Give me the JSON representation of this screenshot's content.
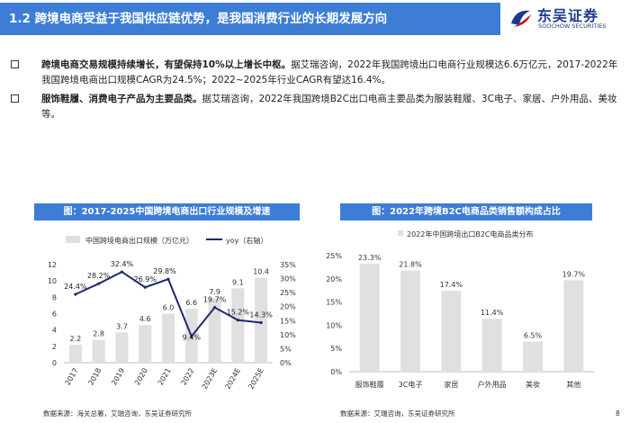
{
  "header": {
    "title": "1.2 跨境电商受益于我国供应链优势，是我国消费行业的长期发展方向",
    "logo_cn": "东吴证券",
    "logo_en": "SOOCHOW SECURITIES",
    "accent": "#3d7dd6"
  },
  "bullets": [
    {
      "bold": "跨境电商交易规模持续增长，有望保持10%以上增长中枢。",
      "text": "据艾瑞咨询，2022年我国跨境出口电商行业规模达6.6万亿元，2017-2022年我国跨境电商出口规模CAGR为24.5%；2022~2025年行业CAGR有望达16.4%。"
    },
    {
      "bold": "服饰鞋履、消费电子产品为主要品类。",
      "text": "据艾瑞咨询，2022年我国跨境B2C出口电商主要品类为服装鞋履、3C电子、家居、户外用品、美妆等。"
    }
  ],
  "figures": [
    {
      "caption": "图：2017-2025中国跨境电商出口行业规模及增速",
      "source": "数据来源：海关总署，艾瑞咨询，东吴证券研究所"
    },
    {
      "caption": "图：2022年跨境B2C电商品类销售额构成占比",
      "source": "数据来源：艾瑞咨询，东吴证券研究所"
    }
  ],
  "page_number": "8",
  "chart_data": [
    {
      "type": "bar",
      "categories": [
        "2017",
        "2018",
        "2019",
        "2020",
        "2021",
        "2022",
        "2023E",
        "2024E",
        "2025E"
      ],
      "series": [
        {
          "name": "中国跨境电商出口规模（万亿元）",
          "axis": "left",
          "kind": "bar",
          "values": [
            2.2,
            2.8,
            3.7,
            4.6,
            6.0,
            6.6,
            7.9,
            9.1,
            10.4
          ],
          "labels": [
            "2.2",
            "2.8",
            "3.7",
            "4.6",
            "6.0",
            "6.6",
            "7.9",
            "9.1",
            "10.4"
          ],
          "color": "#e0e0e0"
        },
        {
          "name": "yoy（右轴）",
          "axis": "right",
          "kind": "line",
          "values": [
            24.4,
            28.2,
            32.4,
            26.9,
            29.8,
            9.4,
            19.7,
            15.2,
            14.3
          ],
          "labels": [
            "24.4%",
            "28.2%",
            "32.4%",
            "26.9%",
            "29.8%",
            "9.4%",
            "19.7%",
            "15.2%",
            "14.3%"
          ],
          "color": "#1f2a6b"
        }
      ],
      "ylim": [
        0,
        12
      ],
      "yticks": [
        0,
        2,
        4,
        6,
        8,
        10,
        12
      ],
      "y2lim": [
        0,
        35
      ],
      "y2ticks": [
        "0%",
        "5%",
        "10%",
        "15%",
        "20%",
        "25%",
        "30%",
        "35%"
      ],
      "legend_position": "top"
    },
    {
      "type": "bar",
      "categories": [
        "服饰鞋履",
        "3C电子",
        "家居",
        "户外用品",
        "美妆",
        "其他"
      ],
      "values": [
        23.3,
        21.8,
        17.4,
        11.4,
        6.5,
        19.7
      ],
      "labels": [
        "23.3%",
        "21.8%",
        "17.4%",
        "11.4%",
        "6.5%",
        "19.7%"
      ],
      "series_name": "2022年中国跨境出口B2C电商品类分布",
      "ylim": [
        0,
        25
      ],
      "yticks": [
        "0%",
        "5%",
        "10%",
        "15%",
        "20%",
        "25%"
      ],
      "color": "#e0e0e0",
      "legend_position": "top"
    }
  ]
}
